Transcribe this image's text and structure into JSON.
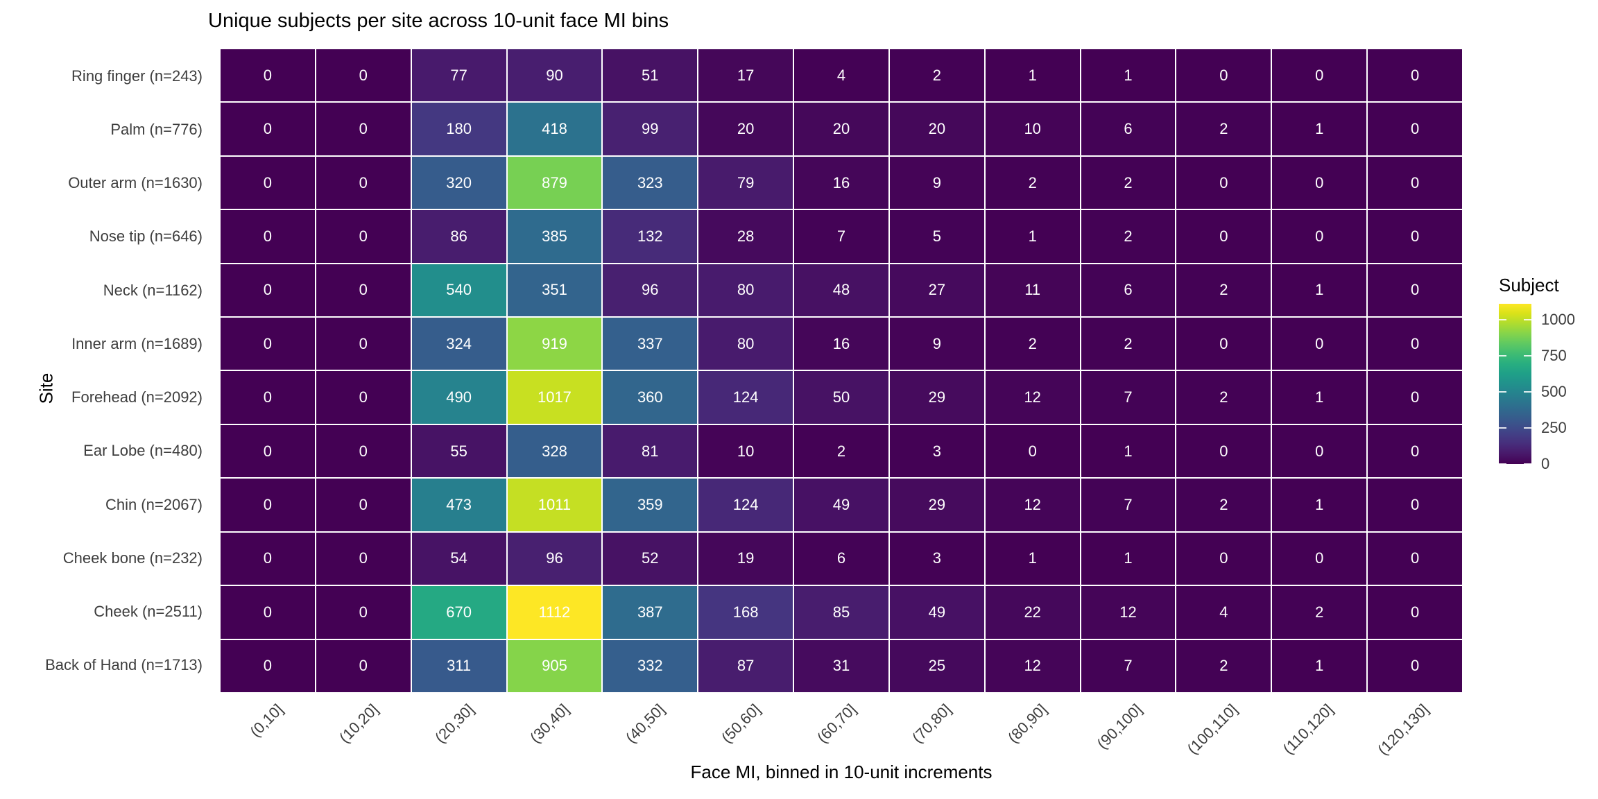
{
  "chart_data": {
    "type": "heatmap",
    "title": "Unique subjects per site across 10-unit face MI bins",
    "xlabel": "Face MI, binned in 10-unit increments",
    "ylabel": "Site",
    "legend_title": "Subject",
    "legend_position": "right",
    "x_bins": [
      "(0,10]",
      "(10,20]",
      "(20,30]",
      "(30,40]",
      "(40,50]",
      "(50,60]",
      "(60,70]",
      "(70,80]",
      "(80,90]",
      "(90,100]",
      "(100,110]",
      "(110,120]",
      "(120,130]"
    ],
    "rows": [
      {
        "site": "Ring finger (n=243)",
        "values": [
          0,
          0,
          77,
          90,
          51,
          17,
          4,
          2,
          1,
          1,
          0,
          0,
          0
        ]
      },
      {
        "site": "Palm (n=776)",
        "values": [
          0,
          0,
          180,
          418,
          99,
          20,
          20,
          20,
          10,
          6,
          2,
          1,
          0
        ]
      },
      {
        "site": "Outer arm (n=1630)",
        "values": [
          0,
          0,
          320,
          879,
          323,
          79,
          16,
          9,
          2,
          2,
          0,
          0,
          0
        ]
      },
      {
        "site": "Nose tip (n=646)",
        "values": [
          0,
          0,
          86,
          385,
          132,
          28,
          7,
          5,
          1,
          2,
          0,
          0,
          0
        ]
      },
      {
        "site": "Neck (n=1162)",
        "values": [
          0,
          0,
          540,
          351,
          96,
          80,
          48,
          27,
          11,
          6,
          2,
          1,
          0
        ]
      },
      {
        "site": "Inner arm (n=1689)",
        "values": [
          0,
          0,
          324,
          919,
          337,
          80,
          16,
          9,
          2,
          2,
          0,
          0,
          0
        ]
      },
      {
        "site": "Forehead (n=2092)",
        "values": [
          0,
          0,
          490,
          1017,
          360,
          124,
          50,
          29,
          12,
          7,
          2,
          1,
          0
        ]
      },
      {
        "site": "Ear Lobe (n=480)",
        "values": [
          0,
          0,
          55,
          328,
          81,
          10,
          2,
          3,
          0,
          1,
          0,
          0,
          0
        ]
      },
      {
        "site": "Chin (n=2067)",
        "values": [
          0,
          0,
          473,
          1011,
          359,
          124,
          49,
          29,
          12,
          7,
          2,
          1,
          0
        ]
      },
      {
        "site": "Cheek bone (n=232)",
        "values": [
          0,
          0,
          54,
          96,
          52,
          19,
          6,
          3,
          1,
          1,
          0,
          0,
          0
        ]
      },
      {
        "site": "Cheek (n=2511)",
        "values": [
          0,
          0,
          670,
          1112,
          387,
          168,
          85,
          49,
          22,
          12,
          4,
          2,
          0
        ]
      },
      {
        "site": "Back of Hand (n=1713)",
        "values": [
          0,
          0,
          311,
          905,
          332,
          87,
          31,
          25,
          12,
          7,
          2,
          1,
          0
        ]
      }
    ],
    "legend_ticks": [
      1000,
      750,
      500,
      250,
      0
    ],
    "color_scale": {
      "name": "viridis",
      "domain": [
        0,
        1112
      ],
      "lut": [
        "#440154",
        "#48186a",
        "#472d7b",
        "#424086",
        "#3b528b",
        "#33638d",
        "#2c728e",
        "#26828e",
        "#21918c",
        "#1fa088",
        "#28ae80",
        "#3fbc73",
        "#5ec962",
        "#84d44b",
        "#addc30",
        "#d8e219",
        "#fde725"
      ]
    },
    "colors": {
      "cell_text": "#ffffff",
      "axis_text": "#3d3d3d",
      "title_text": "#000000",
      "gridline": "#ffffff"
    },
    "grid": "2px white lines between tiles"
  }
}
